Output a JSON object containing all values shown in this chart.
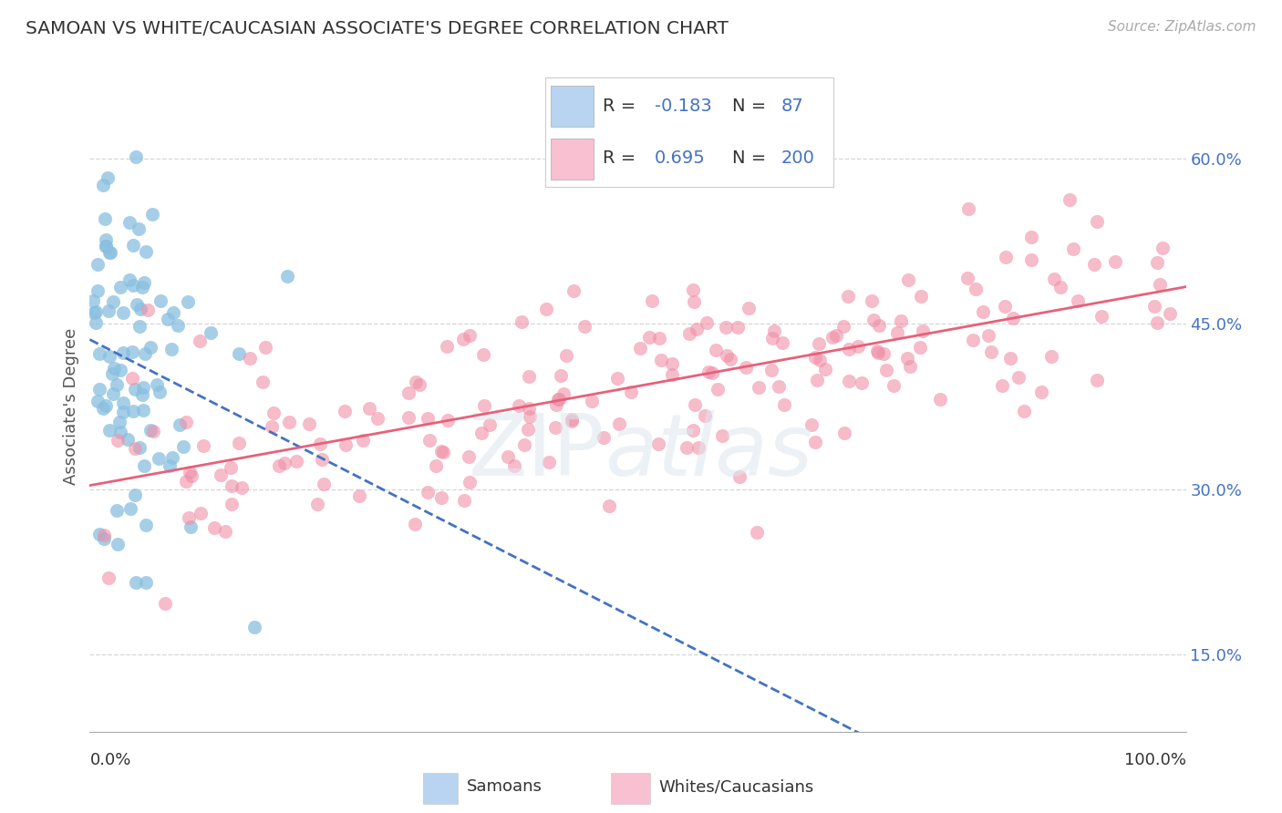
{
  "title": "SAMOAN VS WHITE/CAUCASIAN ASSOCIATE'S DEGREE CORRELATION CHART",
  "source": "Source: ZipAtlas.com",
  "ylabel": "Associate's Degree",
  "legend_label_blue": "Samoans",
  "legend_label_pink": "Whites/Caucasians",
  "blue_scatter_color": "#89bfe0",
  "pink_scatter_color": "#f090a8",
  "blue_line_color": "#4472c4",
  "pink_line_color": "#e8607a",
  "blue_legend_color": "#b8d4f0",
  "pink_legend_color": "#f8c0d0",
  "r_blue": -0.183,
  "n_blue": 87,
  "r_pink": 0.695,
  "n_pink": 200,
  "xmin": 0.0,
  "xmax": 1.0,
  "ymin": 0.08,
  "ymax": 0.67,
  "yticks": [
    0.15,
    0.3,
    0.45,
    0.6
  ],
  "ytick_labels": [
    "15.0%",
    "30.0%",
    "45.0%",
    "60.0%"
  ],
  "background_color": "#ffffff",
  "grid_color": "#cccccc",
  "title_color": "#333333",
  "annotation_color": "#4472c4",
  "seed_blue": 42,
  "seed_pink": 123
}
